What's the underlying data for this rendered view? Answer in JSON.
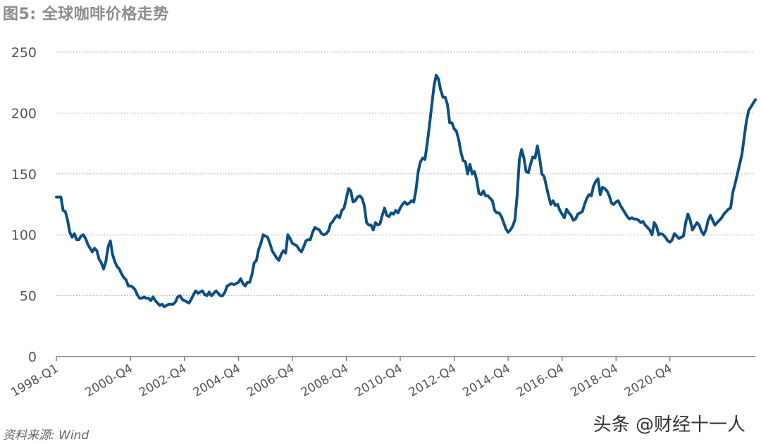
{
  "title": "图5: 全球咖啡价格走势",
  "source": "资料来源: Wind",
  "watermark": "头条 @财经十一人",
  "colors": {
    "line": "#0d4f82",
    "grid": "#999999",
    "axis": "#666666"
  },
  "chart_data": {
    "type": "line",
    "title": "图5: 全球咖啡价格走势",
    "xlabel": "",
    "ylabel": "",
    "ylim": [
      0,
      250
    ],
    "yticks": [
      0,
      50,
      100,
      150,
      200,
      250
    ],
    "grid": true,
    "xticks": [
      "1998-Q1",
      "2000-Q4",
      "2002-Q4",
      "2004-Q4",
      "2006-Q4",
      "2008-Q4",
      "2010-Q4",
      "2012-Q4",
      "2014-Q4",
      "2016-Q4",
      "2018-Q4",
      "2020-Q4"
    ],
    "series": [
      {
        "values": [
          131,
          131,
          131,
          120,
          119,
          112,
          102,
          98,
          101,
          96,
          96,
          99,
          100,
          97,
          92,
          89,
          86,
          89,
          87,
          80,
          77,
          72,
          78,
          90,
          95,
          84,
          78,
          74,
          72,
          68,
          65,
          63,
          58,
          58,
          57,
          55,
          51,
          48,
          48,
          49,
          48,
          48,
          46,
          49,
          46,
          44,
          42,
          43,
          41,
          42,
          43,
          43,
          43,
          45,
          49,
          50,
          47,
          46,
          45,
          44,
          47,
          51,
          54,
          52,
          53,
          54,
          51,
          50,
          53,
          50,
          52,
          54,
          52,
          50,
          50,
          53,
          58,
          59,
          60,
          59,
          60,
          61,
          64,
          60,
          58,
          61,
          61,
          67,
          77,
          79,
          88,
          93,
          100,
          99,
          98,
          93,
          87,
          84,
          81,
          79,
          84,
          87,
          85,
          100,
          97,
          93,
          92,
          91,
          88,
          86,
          90,
          95,
          96,
          96,
          102,
          106,
          105,
          104,
          101,
          100,
          101,
          103,
          109,
          111,
          114,
          116,
          114,
          120,
          122,
          130,
          138,
          136,
          127,
          128,
          131,
          132,
          130,
          124,
          110,
          108,
          108,
          104,
          110,
          108,
          109,
          116,
          122,
          116,
          115,
          118,
          117,
          120,
          118,
          122,
          125,
          127,
          125,
          126,
          128,
          127,
          137,
          152,
          160,
          163,
          162,
          175,
          190,
          206,
          222,
          231,
          228,
          219,
          213,
          213,
          207,
          192,
          192,
          187,
          185,
          178,
          168,
          161,
          160,
          150,
          158,
          150,
          152,
          145,
          134,
          133,
          136,
          132,
          132,
          130,
          128,
          120,
          118,
          118,
          115,
          110,
          105,
          102,
          104,
          107,
          112,
          132,
          162,
          170,
          163,
          152,
          151,
          158,
          164,
          163,
          173,
          163,
          150,
          148,
          140,
          132,
          125,
          128,
          124,
          125,
          120,
          117,
          114,
          121,
          118,
          116,
          112,
          113,
          117,
          118,
          119,
          125,
          130,
          133,
          132,
          140,
          144,
          146,
          133,
          139,
          138,
          136,
          132,
          126,
          125,
          127,
          128,
          124,
          121,
          118,
          115,
          113,
          114,
          113,
          113,
          112,
          110,
          111,
          108,
          106,
          104,
          100,
          110,
          107,
          100,
          101,
          100,
          98,
          95,
          94,
          96,
          101,
          99,
          97,
          98,
          99,
          110,
          117,
          112,
          104,
          107,
          110,
          108,
          103,
          100,
          104,
          112,
          116,
          112,
          108,
          110,
          112,
          114,
          117,
          119,
          121,
          122,
          135,
          142,
          150,
          158,
          166,
          180,
          193,
          202,
          205,
          208,
          211
        ]
      }
    ]
  }
}
